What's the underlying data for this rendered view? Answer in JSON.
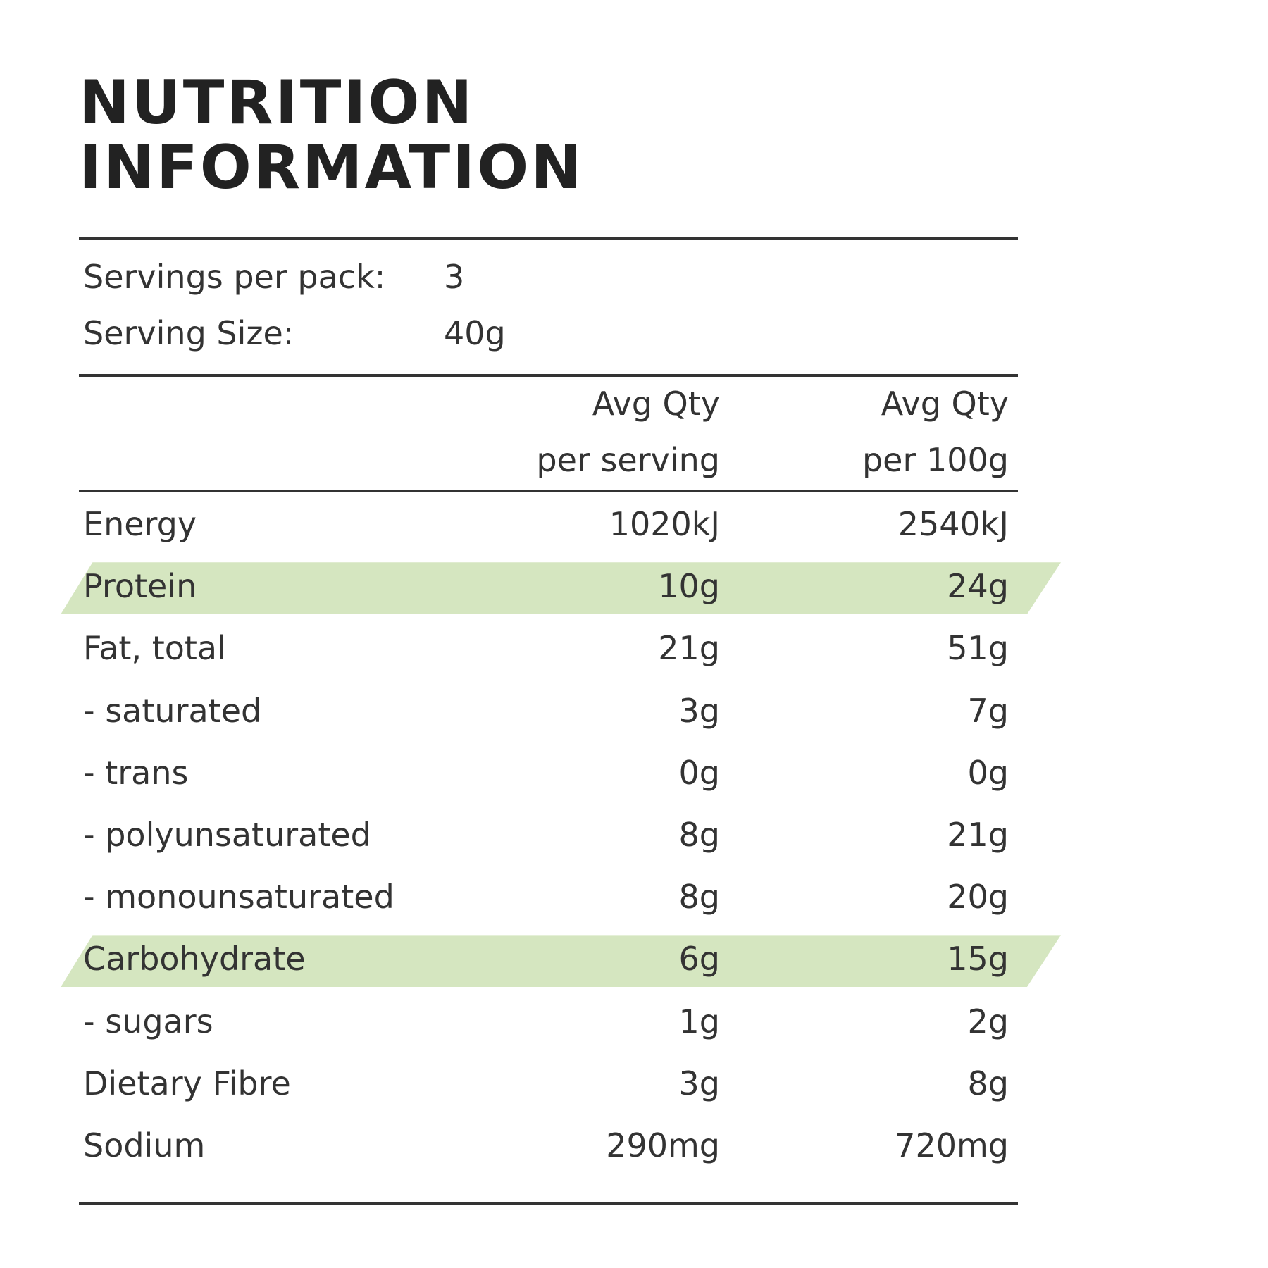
{
  "title": {
    "line1": "NUTRITION",
    "line2": "INFORMATION"
  },
  "servings": [
    {
      "label": "Servings per pack:",
      "value": "3"
    },
    {
      "label": "Serving Size:",
      "value": "40g"
    }
  ],
  "columns": {
    "per_serving_line1": "Avg Qty",
    "per_serving_line2": "per serving",
    "per_100_line1": "Avg Qty",
    "per_100_line2": "per 100g"
  },
  "highlight_color": "#d5e6c0",
  "nutrients": [
    {
      "name": "Energy",
      "per_serving": "1020kJ",
      "per_100g": "2540kJ",
      "highlighted": false
    },
    {
      "name": "Protein",
      "per_serving": "10g",
      "per_100g": "24g",
      "highlighted": true
    },
    {
      "name": "Fat, total",
      "per_serving": "21g",
      "per_100g": "51g",
      "highlighted": false
    },
    {
      "name": "- saturated",
      "per_serving": "3g",
      "per_100g": "7g",
      "highlighted": false
    },
    {
      "name": "- trans",
      "per_serving": "0g",
      "per_100g": "0g",
      "highlighted": false
    },
    {
      "name": "- polyunsaturated",
      "per_serving": "8g",
      "per_100g": "21g",
      "highlighted": false
    },
    {
      "name": "- monounsaturated",
      "per_serving": "8g",
      "per_100g": "20g",
      "highlighted": false
    },
    {
      "name": "Carbohydrate",
      "per_serving": "6g",
      "per_100g": "15g",
      "highlighted": true
    },
    {
      "name": "- sugars",
      "per_serving": "1g",
      "per_100g": "2g",
      "highlighted": false
    },
    {
      "name": "Dietary Fibre",
      "per_serving": "3g",
      "per_100g": "8g",
      "highlighted": false
    },
    {
      "name": "Sodium",
      "per_serving": "290mg",
      "per_100g": "720mg",
      "highlighted": false
    }
  ]
}
